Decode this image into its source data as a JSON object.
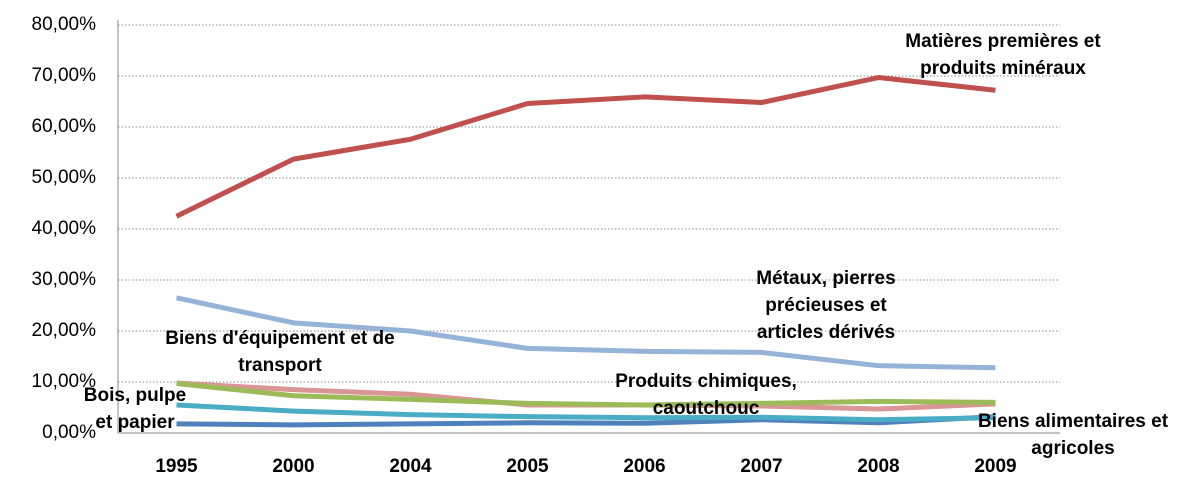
{
  "chart_data": {
    "type": "line",
    "categories": [
      "1995",
      "2000",
      "2004",
      "2005",
      "2006",
      "2007",
      "2008",
      "2009"
    ],
    "ylim": [
      0,
      80
    ],
    "yticks": [
      {
        "value": 0,
        "label": "0,00%"
      },
      {
        "value": 10,
        "label": "10,00%"
      },
      {
        "value": 20,
        "label": "20,00%"
      },
      {
        "value": 30,
        "label": "30,00%"
      },
      {
        "value": 40,
        "label": "40,00%"
      },
      {
        "value": 50,
        "label": "50,00%"
      },
      {
        "value": 60,
        "label": "60,00%"
      },
      {
        "value": 70,
        "label": "70,00%"
      },
      {
        "value": 80,
        "label": "80,00%"
      }
    ],
    "grid": true,
    "series": [
      {
        "name": "Matières premières et produits minéraux",
        "color": "#c0504d",
        "values": [
          42.5,
          53.7,
          57.6,
          64.6,
          65.9,
          64.8,
          69.7,
          67.2
        ]
      },
      {
        "name": "Métaux, pierres précieuses et articles dérivés",
        "color": "#95b3d7",
        "values": [
          26.5,
          21.6,
          20.0,
          16.6,
          16.0,
          15.8,
          13.2,
          12.8
        ]
      },
      {
        "name": "Biens d'équipement et de transport",
        "color": "#9bbb59",
        "values": [
          9.7,
          7.3,
          6.6,
          5.8,
          5.5,
          5.8,
          6.2,
          6.0
        ]
      },
      {
        "name": "Produits chimiques, caoutchouc",
        "color": "#d99694",
        "values": [
          9.8,
          8.5,
          7.6,
          5.5,
          5.5,
          5.3,
          4.7,
          5.7
        ]
      },
      {
        "name": "Bois, pulpe et papier",
        "color": "#4bacc6",
        "values": [
          5.5,
          4.3,
          3.6,
          3.2,
          3.0,
          3.1,
          2.6,
          3.0
        ]
      },
      {
        "name": "Biens alimentaires et agricoles",
        "color": "#4f81bd",
        "values": [
          1.8,
          1.6,
          1.8,
          2.0,
          1.9,
          2.6,
          2.0,
          3.2
        ]
      }
    ]
  }
}
